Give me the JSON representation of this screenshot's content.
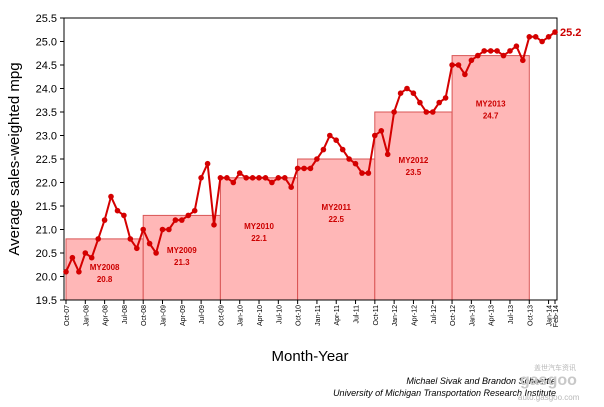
{
  "credits": {
    "line1": "Michael Sivak and Brandon Schoettle",
    "line2": "University of Michigan Transportation Research Institute"
  },
  "watermark": {
    "logo": "gasgoo",
    "chinese": "盖世汽车资讯",
    "url": "auto.gasgoo.com"
  },
  "colors": {
    "line": "#d40000",
    "box_fill": "#ffb7b7",
    "box_stroke": "#d95555",
    "label": "#cc0000"
  },
  "chart_data": {
    "type": "line",
    "xlabel": "Month-Year",
    "ylabel": "Average sales-weighted mpg",
    "ylim": [
      19.5,
      25.5
    ],
    "yticks": [
      "19.5",
      "20.0",
      "20.5",
      "21.0",
      "21.5",
      "22.0",
      "22.5",
      "23.0",
      "23.5",
      "24.0",
      "24.5",
      "25.0",
      "25.5"
    ],
    "xticks": [
      "Oct-07",
      "Jan-08",
      "Apr-08",
      "Jul-08",
      "Oct-08",
      "Jan-09",
      "Apr-09",
      "Jul-09",
      "Oct-09",
      "Jan-10",
      "Apr-10",
      "Jul-10",
      "Oct-10",
      "Jan-11",
      "Apr-11",
      "Jul-11",
      "Oct-11",
      "Jan-12",
      "Apr-12",
      "Jul-12",
      "Oct-12",
      "Jan-13",
      "Apr-13",
      "Jul-13",
      "Oct-13",
      "Jan-14",
      "Feb-14"
    ],
    "grid": false,
    "series": [
      {
        "start": "Oct-07",
        "end": "Feb-14",
        "values": [
          20.1,
          20.4,
          20.1,
          20.5,
          20.4,
          20.8,
          21.2,
          21.7,
          21.4,
          21.3,
          20.8,
          20.6,
          21.0,
          20.7,
          20.5,
          21.0,
          21.0,
          21.2,
          21.2,
          21.3,
          21.4,
          22.1,
          22.4,
          21.1,
          22.1,
          22.1,
          22.0,
          22.2,
          22.1,
          22.1,
          22.1,
          22.1,
          22.0,
          22.1,
          22.1,
          21.9,
          22.3,
          22.3,
          22.3,
          22.5,
          22.7,
          23.0,
          22.9,
          22.7,
          22.5,
          22.4,
          22.2,
          22.2,
          23.0,
          23.1,
          22.6,
          23.5,
          23.9,
          24.0,
          23.9,
          23.7,
          23.5,
          23.5,
          23.7,
          23.8,
          24.5,
          24.5,
          24.3,
          24.6,
          24.7,
          24.8,
          24.8,
          24.8,
          24.7,
          24.8,
          24.9,
          24.6,
          25.1,
          25.1,
          25.0,
          25.1,
          25.2
        ],
        "end_label": "25.2"
      }
    ],
    "model_years": [
      {
        "name": "MY2008",
        "value": "20.8",
        "start": "Oct-07",
        "end": "Sep-08"
      },
      {
        "name": "MY2009",
        "value": "21.3",
        "start": "Oct-08",
        "end": "Sep-09"
      },
      {
        "name": "MY2010",
        "value": "22.1",
        "start": "Oct-09",
        "end": "Sep-10"
      },
      {
        "name": "MY2011",
        "value": "22.5",
        "start": "Oct-10",
        "end": "Sep-11"
      },
      {
        "name": "MY2012",
        "value": "23.5",
        "start": "Oct-11",
        "end": "Sep-12"
      },
      {
        "name": "MY2013",
        "value": "24.7",
        "start": "Oct-12",
        "end": "Sep-13"
      }
    ]
  }
}
